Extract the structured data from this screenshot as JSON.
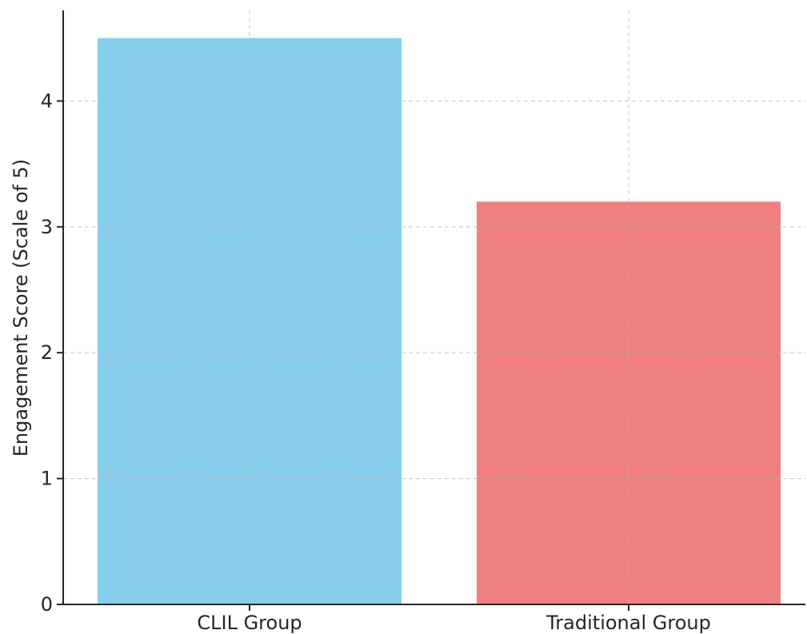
{
  "chart_data": {
    "type": "bar",
    "title": "",
    "xlabel": "",
    "ylabel": "Engagement Score (Scale of 5)",
    "categories": [
      "CLIL Group",
      "Traditional Group"
    ],
    "values": [
      4.5,
      3.2
    ],
    "colors": [
      "#87ceeb",
      "#f08080"
    ],
    "ylim": [
      0,
      4.72
    ],
    "yticks": [
      0,
      1,
      2,
      3,
      4
    ],
    "grid": true,
    "grid_style": "dashed",
    "legend": "none"
  }
}
